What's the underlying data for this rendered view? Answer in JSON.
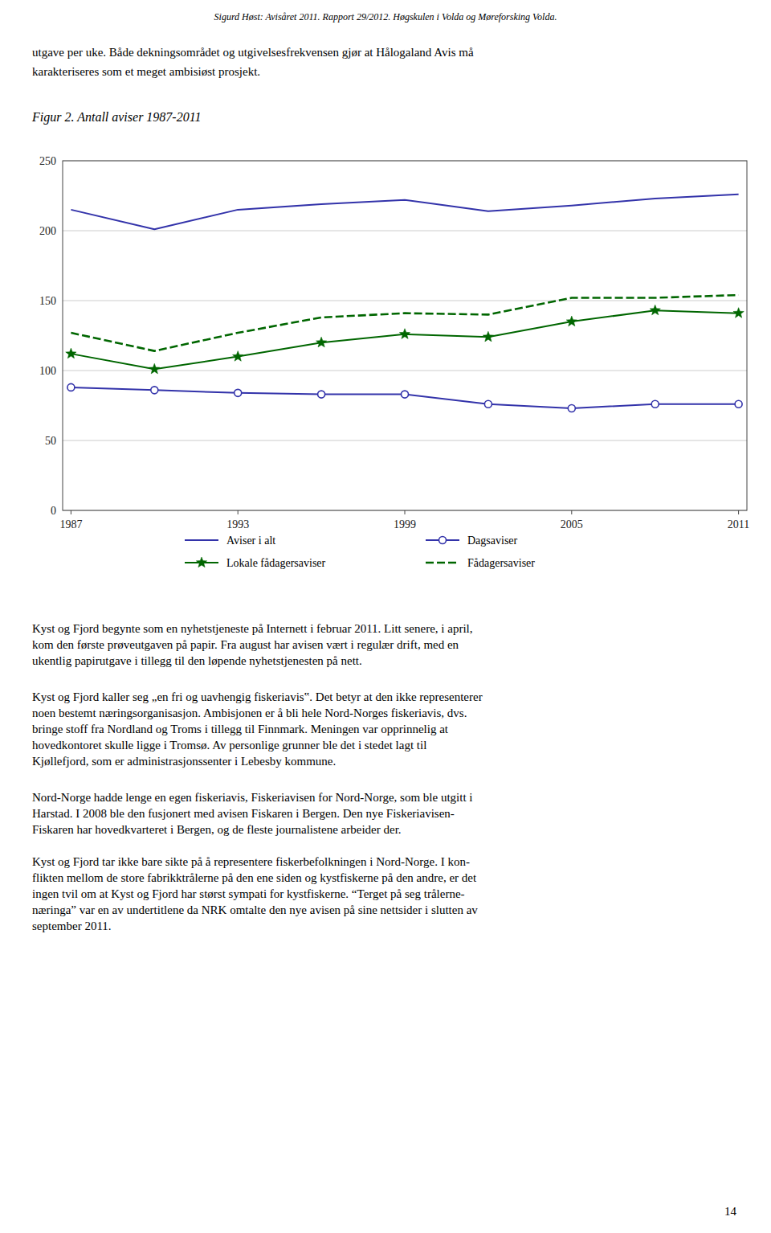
{
  "chart_data": {
    "type": "line",
    "title": "Figur 2. Antall aviser 1987-2011",
    "x": [
      1987,
      1990,
      1993,
      1996,
      1999,
      2002,
      2005,
      2008,
      2011
    ],
    "series": [
      {
        "name": "Aviser i alt",
        "color": "#3333aa",
        "marker": "none",
        "line_style": "solid",
        "values": [
          215,
          201,
          215,
          219,
          222,
          214,
          218,
          223,
          226
        ]
      },
      {
        "name": "Dagsaviser",
        "color": "#3333aa",
        "marker": "circle",
        "line_style": "solid",
        "values": [
          88,
          86,
          84,
          83,
          83,
          76,
          73,
          76,
          76
        ]
      },
      {
        "name": "Lokale fådagersaviser",
        "color": "#006600",
        "marker": "star",
        "line_style": "solid",
        "values": [
          112,
          101,
          110,
          120,
          126,
          124,
          135,
          143,
          141
        ]
      },
      {
        "name": "Fådagersaviser",
        "color": "#006600",
        "marker": "none",
        "line_style": "dashed",
        "values": [
          127,
          114,
          127,
          138,
          141,
          140,
          152,
          152,
          154
        ]
      }
    ],
    "xlim": [
      1986.7,
      2011.3
    ],
    "xticks": [
      1987,
      1993,
      1999,
      2005,
      2011
    ],
    "ylim": [
      0,
      250
    ],
    "yticks": [
      0,
      50,
      100,
      150,
      200,
      250
    ],
    "grid": true,
    "legend": "bottom"
  },
  "page": {
    "header": "Sigurd Høst: Avisåret 2011. Rapport 29/2012. Høgskulen i Volda og Møreforsking Volda.",
    "text_above": [
      "utgave per uke. Både dekningsområdet og utgivelsesfrekvensen gjør at Hålogaland Avis må",
      "karakteriseres som et meget ambisiøst prosjekt."
    ],
    "text_below": [
      [
        "Kyst og Fjord begynte som en nyhetstjeneste på Internett i februar 2011. Litt senere, i april,",
        "kom den første prøveutgaven på papir. Fra august har avisen vært i regulær drift, med en",
        "ukentlig papirutgave i tillegg til den løpende nyhetstjenesten på nett."
      ],
      [
        "Kyst og Fjord kaller seg „en fri og uavhengig fiskeriavis‟. Det betyr at den ikke representerer",
        "noen bestemt næringsorganisasjon. Ambisjonen er å bli hele Nord-Norges fiskeriavis, dvs.",
        "bringe stoff fra Nordland og Troms i tillegg til Finnmark. Meningen var opprinnelig at",
        "hovedkontoret skulle ligge i Tromsø. Av personlige grunner ble det i stedet lagt til",
        "Kjøllefjord, som er administrasjonssenter i Lebesby kommune."
      ],
      [
        "Nord-Norge hadde lenge en egen fiskeriavis, Fiskeriavisen for Nord-Norge, som ble utgitt i",
        "Harstad. I 2008 ble den fusjonert med avisen Fiskaren i Bergen. Den nye Fiskeriavisen-",
        "Fiskaren har hovedkvarteret i Bergen, og de fleste journalistene arbeider der."
      ],
      [
        "Kyst og Fjord tar ikke bare sikte på å representere fiskerbefolkningen i Nord-Norge. I kon-",
        "flikten mellom de store fabrikktrålerne på den ene siden og kystfiskerne på den andre, er det",
        "ingen tvil om at Kyst og Fjord har størst sympati for kystfiskerne. “Terget på seg trålerne-",
        "næringa” var en av undertitlene da NRK omtalte den nye avisen på sine nettsider i slutten av",
        "september 2011."
      ]
    ],
    "page_number": "14"
  }
}
